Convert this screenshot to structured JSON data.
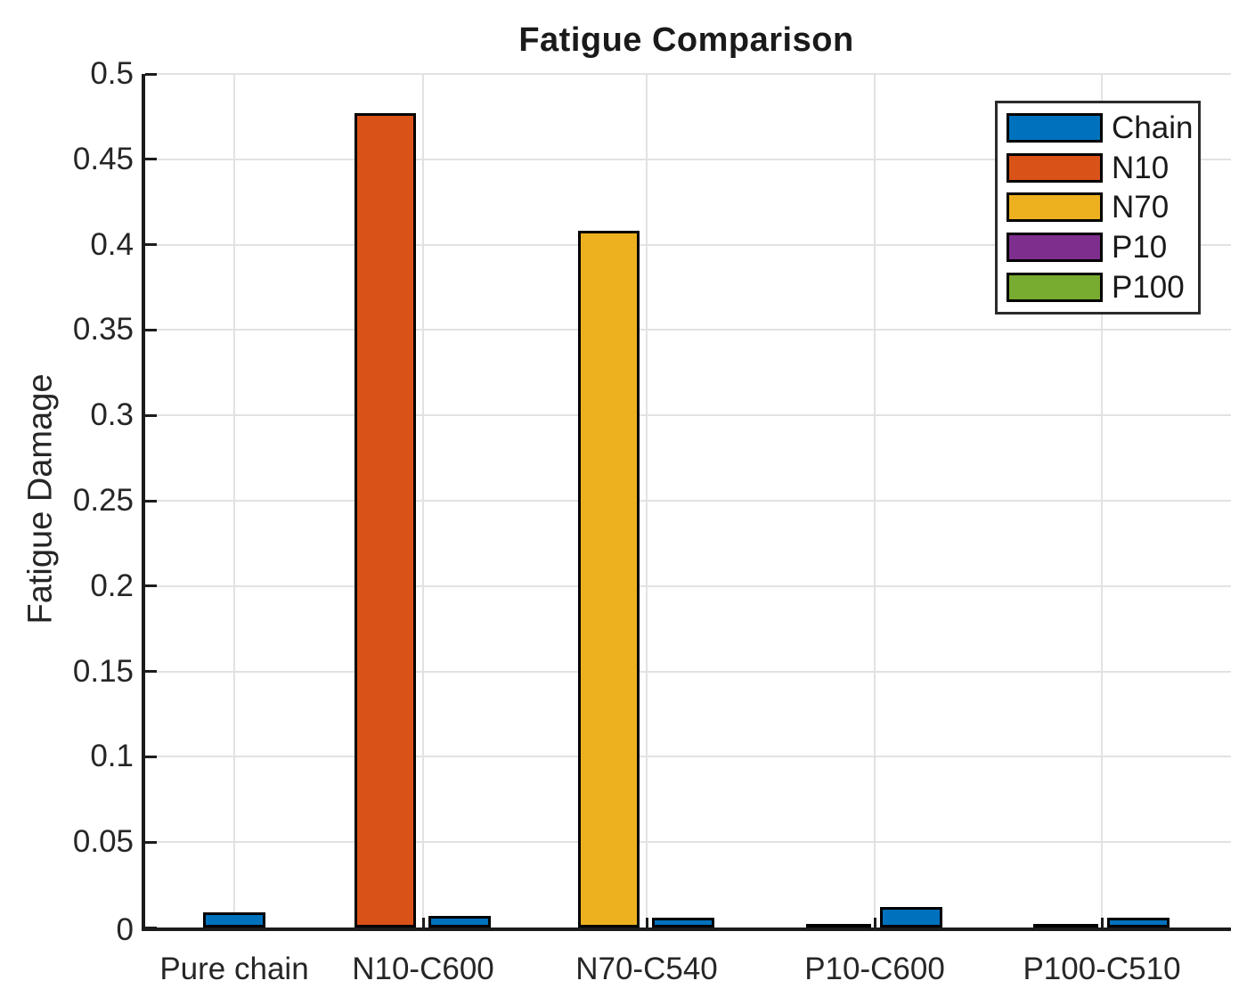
{
  "chart_data": {
    "type": "bar",
    "title": "Fatigue Comparison",
    "ylabel": "Fatigue Damage",
    "xlabel": "",
    "ylim": [
      0,
      0.5
    ],
    "y_tick_step": 0.05,
    "y_tick_labels": [
      "0",
      "0.05",
      "0.1",
      "0.15",
      "0.2",
      "0.25",
      "0.3",
      "0.35",
      "0.4",
      "0.45",
      "0.5"
    ],
    "grid": true,
    "legend_position": "top-right",
    "legend_entries": [
      "Chain",
      "N10",
      "N70",
      "P10",
      "P100"
    ],
    "categories": [
      "Pure chain",
      "N10-C600",
      "N70-C540",
      "P10-C600",
      "P100-C510"
    ],
    "series": [
      {
        "name": "Chain",
        "color": "#0072BD",
        "values": [
          0.009,
          0.007,
          0.006,
          0.012,
          0.006
        ]
      },
      {
        "name": "N10",
        "color": "#D95319",
        "values": [
          0,
          0.477,
          0,
          0,
          0
        ]
      },
      {
        "name": "N70",
        "color": "#EDB120",
        "values": [
          0,
          0,
          0.408,
          0,
          0
        ]
      },
      {
        "name": "P10",
        "color": "#7E2F8E",
        "values": [
          0,
          0,
          0,
          0.001,
          0
        ]
      },
      {
        "name": "P100",
        "color": "#77AC30",
        "values": [
          0,
          0,
          0,
          0,
          0.001
        ]
      }
    ],
    "colors": {
      "axis": "#1c1c1c",
      "grid": "#e2e2e2",
      "text": "#262626",
      "bar_edge": "#000000",
      "background": "#ffffff"
    }
  }
}
